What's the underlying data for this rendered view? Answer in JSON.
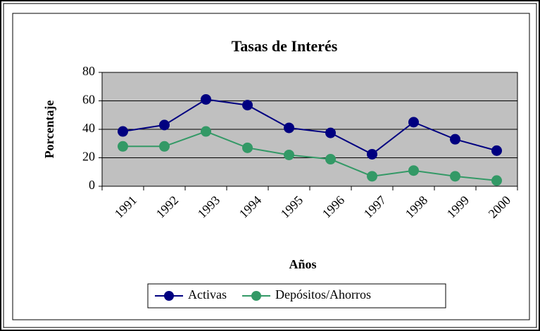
{
  "chart_data": {
    "type": "line",
    "title": "Tasas de Interés",
    "x_label": "Años",
    "y_label": "Porcentaje",
    "categories": [
      "1991",
      "1992",
      "1993",
      "1994",
      "1995",
      "1996",
      "1997",
      "1998",
      "1999",
      "2000"
    ],
    "series": [
      {
        "name": "Activas",
        "color": "#000080",
        "values": [
          38.5,
          43,
          61,
          57,
          41,
          37.5,
          22.5,
          45,
          33,
          25
        ]
      },
      {
        "name": "Depósitos/Ahorros",
        "color": "#339966",
        "values": [
          28,
          28,
          38.5,
          27,
          22,
          19,
          7,
          11,
          7,
          4
        ]
      }
    ],
    "ylim": [
      0,
      80
    ],
    "yticks": [
      0,
      20,
      40,
      60,
      80
    ],
    "grid": true,
    "plot_background": "#c0c0c0",
    "legend": "bottom"
  }
}
